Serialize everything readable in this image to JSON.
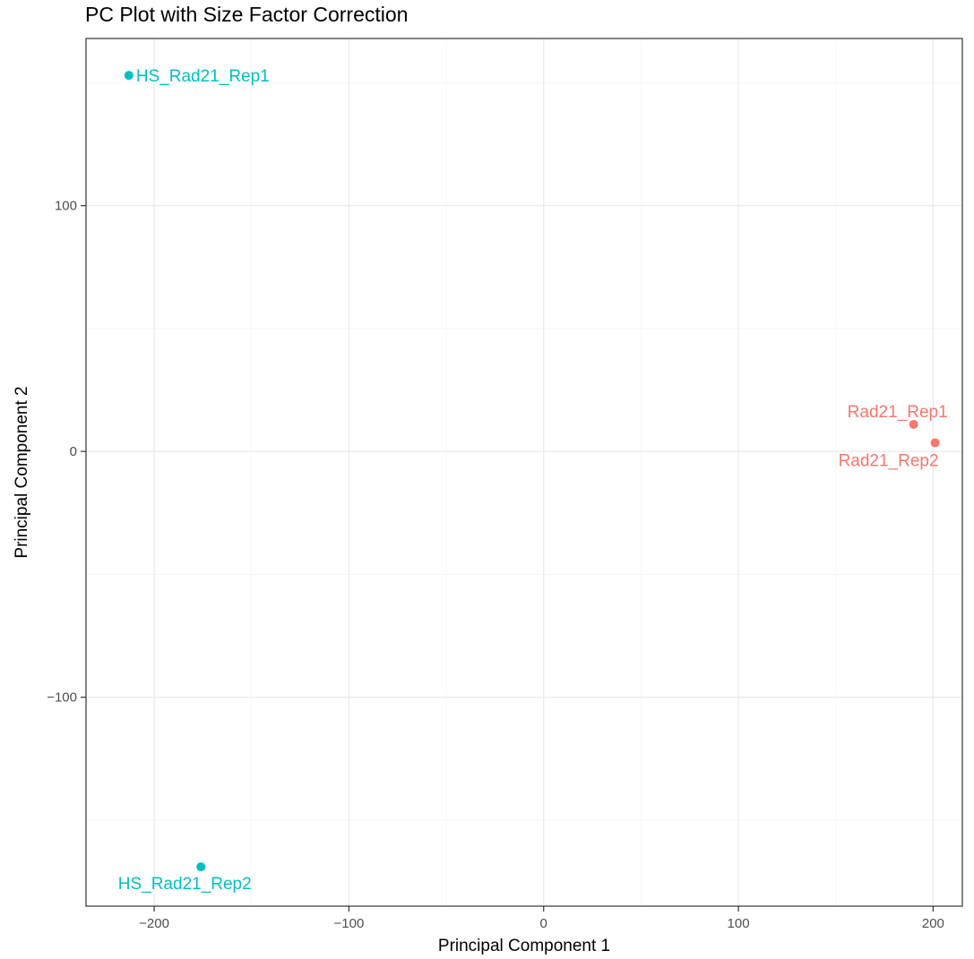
{
  "chart_data": {
    "type": "scatter",
    "title": "PC Plot with Size Factor Correction",
    "xlabel": "Principal Component 1",
    "ylabel": "Principal Component 2",
    "xlim": [
      -235,
      215
    ],
    "ylim": [
      -185,
      168
    ],
    "xticks": [
      -200,
      -100,
      0,
      100,
      200
    ],
    "xtick_labels": [
      "−200",
      "−100",
      "0",
      "100",
      "200"
    ],
    "yticks": [
      -100,
      0,
      100
    ],
    "ytick_labels": [
      "−100",
      "0",
      "100"
    ],
    "xminor": [
      -150,
      -50,
      50,
      150
    ],
    "yminor": [
      -150,
      -50,
      50,
      150
    ],
    "grid": true,
    "legend": "none",
    "points": [
      {
        "label": "HS_Rad21_Rep1",
        "x": -213,
        "y": 153,
        "color": "#00BFC4",
        "label_pos": "right"
      },
      {
        "label": "HS_Rad21_Rep2",
        "x": -176,
        "y": -169,
        "color": "#00BFC4",
        "label_pos": "below-left"
      },
      {
        "label": "Rad21_Rep1",
        "x": 190,
        "y": 11,
        "color": "#F8766D",
        "label_pos": "above"
      },
      {
        "label": "Rad21_Rep2",
        "x": 201,
        "y": 3.5,
        "color": "#F8766D",
        "label_pos": "below"
      }
    ]
  }
}
